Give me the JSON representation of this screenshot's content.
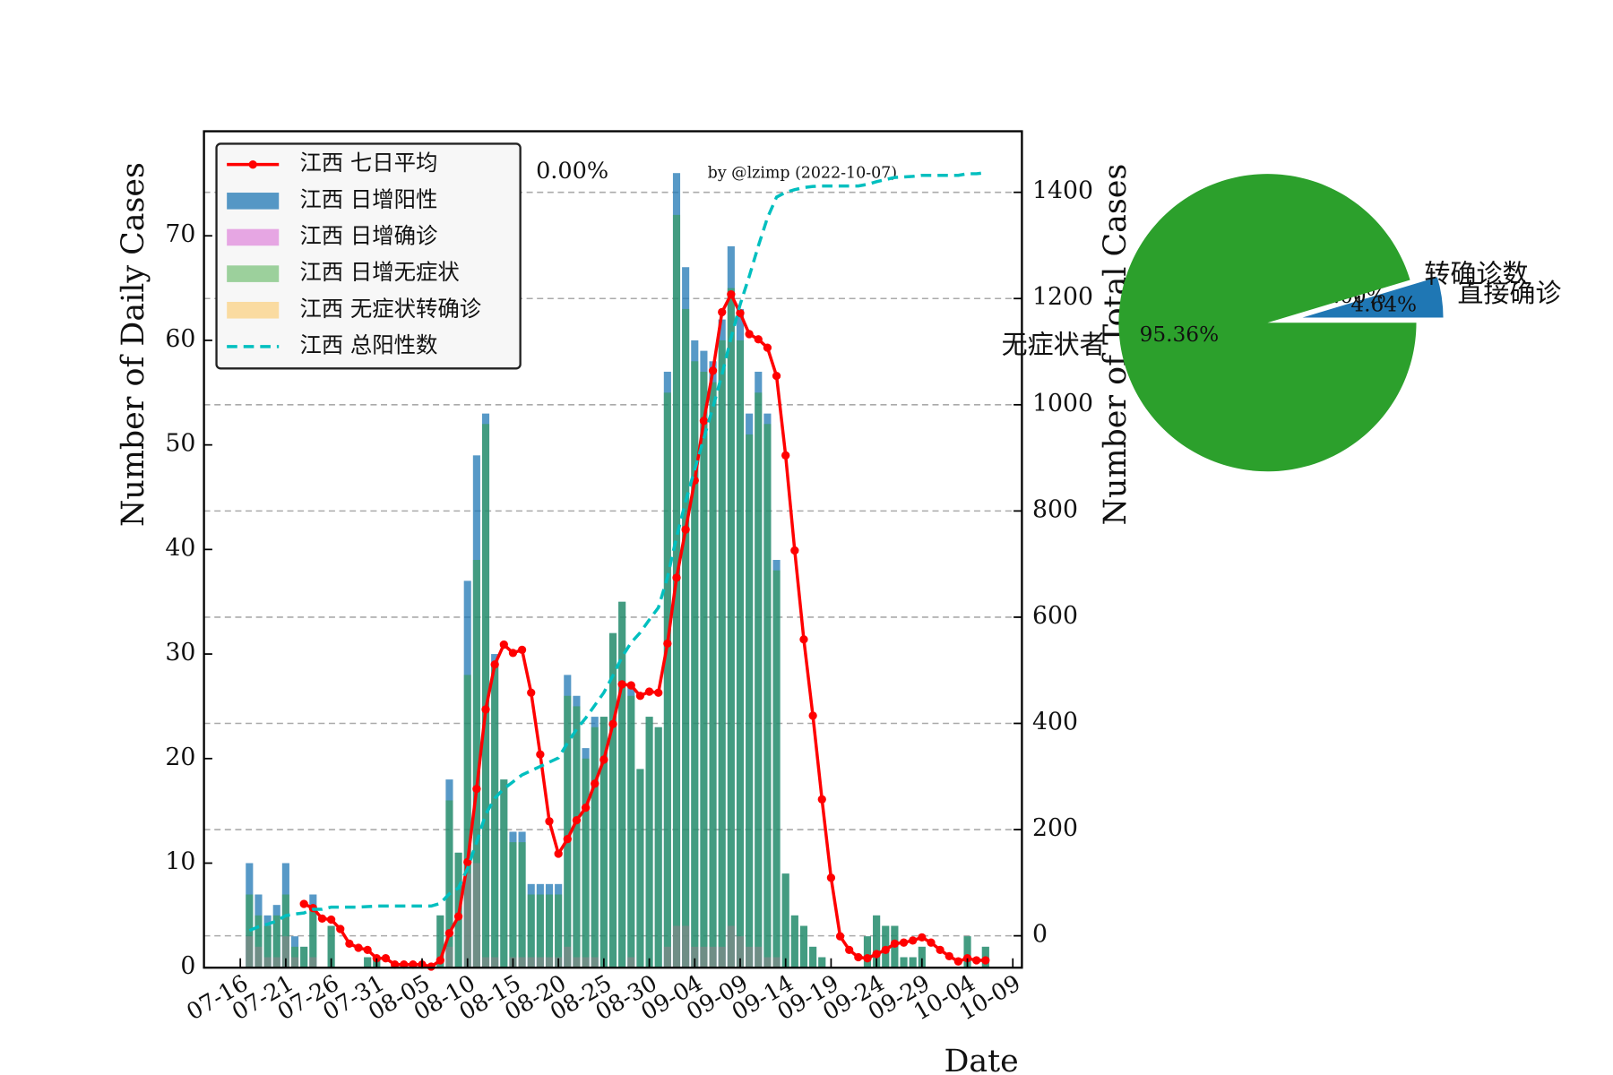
{
  "chart_data": [
    {
      "type": "bar",
      "annotations": [
        {
          "text": "0.00%",
          "color": "#ff3333"
        },
        {
          "text": "by @lzimp (2022-10-07)",
          "color": "#e6e6e6"
        }
      ],
      "xlabel": "Date",
      "ylabel": "Number of Daily Cases",
      "y2label": "Number of Total Cases",
      "y2label_color": "#00bfbf",
      "x": [
        "07-17",
        "07-18",
        "07-19",
        "07-20",
        "07-21",
        "07-22",
        "07-23",
        "07-24",
        "07-25",
        "07-26",
        "07-27",
        "07-28",
        "07-29",
        "07-30",
        "07-31",
        "08-01",
        "08-02",
        "08-03",
        "08-04",
        "08-05",
        "08-06",
        "08-07",
        "08-08",
        "08-09",
        "08-10",
        "08-11",
        "08-12",
        "08-13",
        "08-14",
        "08-15",
        "08-16",
        "08-17",
        "08-18",
        "08-19",
        "08-20",
        "08-21",
        "08-22",
        "08-23",
        "08-24",
        "08-25",
        "08-26",
        "08-27",
        "08-28",
        "08-29",
        "08-30",
        "08-31",
        "09-01",
        "09-02",
        "09-03",
        "09-04",
        "09-05",
        "09-06",
        "09-07",
        "09-08",
        "09-09",
        "09-10",
        "09-11",
        "09-12",
        "09-13",
        "09-14",
        "09-15",
        "09-16",
        "09-17",
        "09-18",
        "09-19",
        "09-20",
        "09-21",
        "09-22",
        "09-23",
        "09-24",
        "09-25",
        "09-26",
        "09-27",
        "09-28",
        "09-29",
        "09-30",
        "10-01",
        "10-02",
        "10-03",
        "10-04",
        "10-05",
        "10-06"
      ],
      "xlim": [
        "07-12",
        "10-10"
      ],
      "xticks": [
        "07-16",
        "07-21",
        "07-26",
        "07-31",
        "08-05",
        "08-10",
        "08-15",
        "08-20",
        "08-25",
        "08-30",
        "09-04",
        "09-09",
        "09-14",
        "09-19",
        "09-24",
        "09-29",
        "10-04",
        "10-09"
      ],
      "ylim": [
        0,
        80
      ],
      "yticks": [
        0,
        10,
        20,
        30,
        40,
        50,
        60,
        70
      ],
      "y2lim": [
        -60,
        1515
      ],
      "y2ticks": [
        0,
        200,
        400,
        600,
        800,
        1000,
        1200,
        1400
      ],
      "grid": "y2",
      "legend": "upper left",
      "series": [
        {
          "name": "江西 七日平均",
          "type": "line",
          "color": "#ff0000",
          "marker": true,
          "dash": false,
          "values": [
            null,
            null,
            null,
            null,
            null,
            null,
            6.1,
            5.7,
            4.7,
            4.6,
            3.7,
            2.3,
            1.9,
            1.7,
            0.9,
            0.9,
            0.3,
            0.3,
            0.3,
            0.3,
            0.1,
            0.7,
            3.3,
            4.9,
            10.1,
            17.1,
            24.7,
            29.0,
            30.9,
            30.1,
            30.4,
            26.3,
            20.4,
            14.0,
            10.9,
            12.3,
            14.1,
            15.3,
            17.6,
            19.9,
            23.3,
            27.1,
            27.0,
            26.0,
            26.4,
            26.3,
            31.0,
            37.3,
            41.9,
            46.6,
            52.3,
            57.1,
            62.7,
            64.4,
            62.6,
            60.6,
            60.1,
            59.3,
            56.6,
            49.0,
            39.9,
            31.4,
            24.1,
            16.1,
            8.6,
            3.0,
            1.7,
            1.0,
            0.9,
            1.3,
            1.7,
            2.3,
            2.4,
            2.6,
            2.9,
            2.4,
            1.7,
            1.1,
            0.6,
            0.9,
            0.7,
            0.7
          ]
        },
        {
          "name": "江西 日增阳性",
          "type": "bar",
          "color": "#1f77b4",
          "opacity": 0.75,
          "values": [
            10,
            7,
            5,
            6,
            10,
            3,
            2,
            7,
            0,
            4,
            0,
            0,
            0,
            1,
            1,
            0,
            0,
            0,
            0,
            0,
            0,
            5,
            18,
            11,
            37,
            49,
            53,
            30,
            18,
            13,
            13,
            8,
            8,
            8,
            8,
            28,
            26,
            21,
            24,
            24,
            32,
            35,
            27,
            19,
            24,
            23,
            57,
            76,
            67,
            60,
            59,
            58,
            62,
            69,
            63,
            53,
            57,
            53,
            39,
            9,
            5,
            4,
            2,
            1,
            0,
            0,
            0,
            0,
            3,
            5,
            4,
            4,
            1,
            1,
            2,
            0,
            0,
            0,
            0,
            3,
            0,
            2
          ]
        },
        {
          "name": "江西 日增确诊",
          "type": "bar",
          "color": "#da70d6",
          "opacity": 0.6,
          "values": [
            3,
            2,
            1,
            1,
            3,
            1,
            0,
            1,
            0,
            0,
            0,
            0,
            0,
            0,
            0,
            0,
            0,
            0,
            0,
            0,
            0,
            0,
            2,
            0,
            9,
            10,
            1,
            1,
            0,
            1,
            1,
            1,
            1,
            1,
            1,
            2,
            1,
            1,
            1,
            0,
            0,
            0,
            1,
            0,
            0,
            0,
            2,
            4,
            4,
            2,
            2,
            2,
            2,
            4,
            3,
            2,
            2,
            1,
            1,
            0,
            0,
            0,
            0,
            0,
            0,
            0,
            0,
            0,
            0,
            0,
            0,
            0,
            0,
            0,
            0,
            0,
            0,
            0,
            0,
            0,
            0,
            0
          ]
        },
        {
          "name": "江西 日增无症状",
          "type": "bar",
          "color": "#2ca02c",
          "opacity": 0.45,
          "values": [
            7,
            5,
            4,
            5,
            7,
            2,
            2,
            6,
            0,
            4,
            0,
            0,
            0,
            1,
            1,
            0,
            0,
            0,
            0,
            0,
            0,
            5,
            16,
            11,
            28,
            39,
            52,
            29,
            18,
            12,
            12,
            7,
            7,
            7,
            7,
            26,
            25,
            20,
            23,
            24,
            32,
            35,
            26,
            19,
            24,
            23,
            55,
            72,
            63,
            58,
            57,
            56,
            60,
            65,
            60,
            51,
            55,
            52,
            38,
            9,
            5,
            4,
            2,
            1,
            0,
            0,
            0,
            0,
            3,
            5,
            4,
            4,
            1,
            1,
            2,
            0,
            0,
            0,
            0,
            3,
            0,
            2
          ]
        },
        {
          "name": "江西 无症状转确诊",
          "type": "bar",
          "color": "#ffa500",
          "opacity": 0.35,
          "values": [
            0,
            0,
            0,
            0,
            0,
            0,
            0,
            0,
            0,
            0,
            0,
            0,
            0,
            0,
            0,
            0,
            0,
            0,
            0,
            0,
            0,
            0,
            0,
            0,
            0,
            0,
            0,
            0,
            0,
            0,
            0,
            0,
            0,
            0,
            0,
            0,
            0,
            0,
            0,
            0,
            0,
            0,
            0,
            0,
            0,
            0,
            0,
            0,
            0,
            0,
            0,
            0,
            0,
            0,
            0,
            0,
            0,
            0,
            0,
            0,
            0,
            0,
            0,
            0,
            0,
            0,
            0,
            0,
            0,
            0,
            0,
            0,
            0,
            0,
            0,
            0,
            0,
            0,
            0,
            0,
            0,
            0
          ]
        },
        {
          "name": "江西 总阳性数",
          "type": "line",
          "color": "#00bfbf",
          "marker": false,
          "dash": true,
          "axis": "y2",
          "values": [
            10,
            17,
            22,
            28,
            38,
            41,
            43,
            50,
            50,
            54,
            54,
            54,
            54,
            55,
            56,
            56,
            56,
            56,
            56,
            56,
            56,
            61,
            79,
            90,
            127,
            176,
            229,
            259,
            277,
            290,
            303,
            311,
            319,
            327,
            335,
            363,
            389,
            410,
            434,
            458,
            490,
            525,
            552,
            571,
            595,
            618,
            675,
            751,
            818,
            878,
            937,
            995,
            1057,
            1126,
            1189,
            1242,
            1299,
            1352,
            1391,
            1400,
            1405,
            1409,
            1411,
            1412,
            1412,
            1412,
            1412,
            1412,
            1415,
            1420,
            1424,
            1428,
            1429,
            1430,
            1432,
            1432,
            1432,
            1432,
            1432,
            1435,
            1435,
            1437
          ]
        }
      ]
    },
    {
      "type": "pie",
      "categories": [
        "直接确诊",
        "转确诊数",
        "无症状者"
      ],
      "values": [
        4.64,
        0.0,
        95.36
      ],
      "value_labels": [
        "4.64%",
        "0.00%",
        "95.36%"
      ],
      "colors": [
        "#1f77b4",
        "#ff7f0e",
        "#2ca02c"
      ],
      "explode": [
        0.19,
        0,
        0
      ]
    }
  ]
}
